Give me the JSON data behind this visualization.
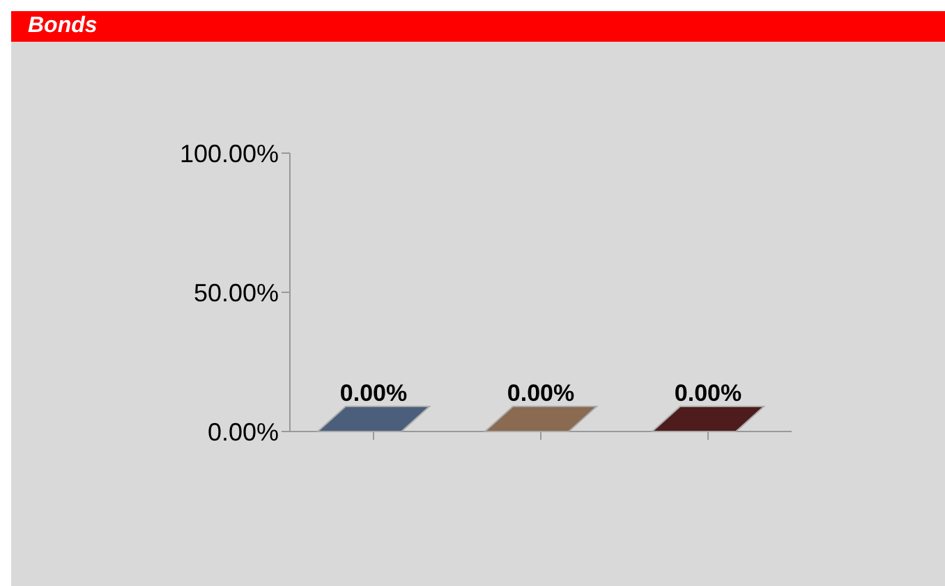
{
  "chart_data": {
    "type": "bar",
    "title": "Bonds",
    "categories": [
      null,
      null,
      null
    ],
    "values": [
      0,
      0,
      0
    ],
    "colors": [
      "#4b5f7d",
      "#8a6a50",
      "#4e1c1c"
    ],
    "value_labels": [
      "0.00%",
      "0.00%",
      "0.00%"
    ],
    "ylim": [
      0,
      100
    ],
    "yticks": [
      {
        "value": 0,
        "label": "0.00%"
      },
      {
        "value": 50,
        "label": "50.00%"
      },
      {
        "value": 100,
        "label": "100.00%"
      }
    ],
    "grid": false,
    "legend": false
  }
}
